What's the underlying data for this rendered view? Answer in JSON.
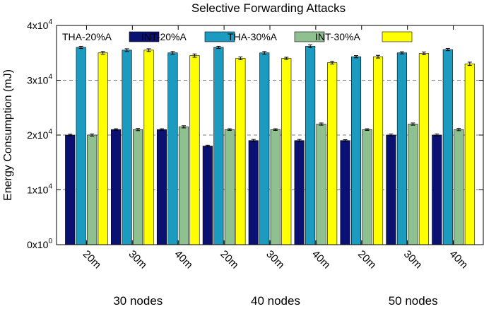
{
  "chart_data": {
    "type": "bar",
    "title": "Selective Forwarding Attacks",
    "ylabel": "Energy Consumption (mJ)",
    "xlabel": "",
    "ylim": [
      0,
      40000
    ],
    "grid": "horizontal-dashed",
    "y_ticks": [
      {
        "value": 0,
        "base": "0x10",
        "exp": "0"
      },
      {
        "value": 10000,
        "base": "1x10",
        "exp": "4"
      },
      {
        "value": 20000,
        "base": "2x10",
        "exp": "4"
      },
      {
        "value": 30000,
        "base": "3x10",
        "exp": "4"
      },
      {
        "value": 40000,
        "base": "4x10",
        "exp": "4"
      }
    ],
    "categories": [
      "20m",
      "30m",
      "40m",
      "20m",
      "30m",
      "40m",
      "20m",
      "30m",
      "40m"
    ],
    "groups": [
      "30 nodes",
      "40 nodes",
      "50 nodes"
    ],
    "legend_position": "top, inside plot",
    "series": [
      {
        "name": "THA-20%A",
        "color": "#0a1172",
        "values": [
          20000,
          21000,
          21000,
          18000,
          19000,
          19000,
          19000,
          20000,
          20000
        ],
        "errors": [
          150,
          150,
          150,
          150,
          200,
          200,
          150,
          200,
          200
        ]
      },
      {
        "name": "INT-20%A",
        "color": "#1a9bbf",
        "values": [
          36000,
          35500,
          35000,
          36000,
          35000,
          36200,
          34300,
          35000,
          35600
        ],
        "errors": [
          200,
          250,
          250,
          200,
          250,
          250,
          200,
          200,
          200
        ]
      },
      {
        "name": "THA-30%A",
        "color": "#8fc08f",
        "values": [
          20000,
          21000,
          21500,
          21000,
          21000,
          22000,
          21000,
          22000,
          21000
        ],
        "errors": [
          200,
          200,
          200,
          150,
          150,
          200,
          150,
          200,
          200
        ]
      },
      {
        "name": "INT-30%A",
        "color": "#ffff00",
        "values": [
          35000,
          35500,
          34500,
          34000,
          34000,
          33200,
          34300,
          34900,
          33000
        ],
        "errors": [
          250,
          250,
          300,
          250,
          200,
          250,
          250,
          250,
          300
        ]
      }
    ]
  }
}
